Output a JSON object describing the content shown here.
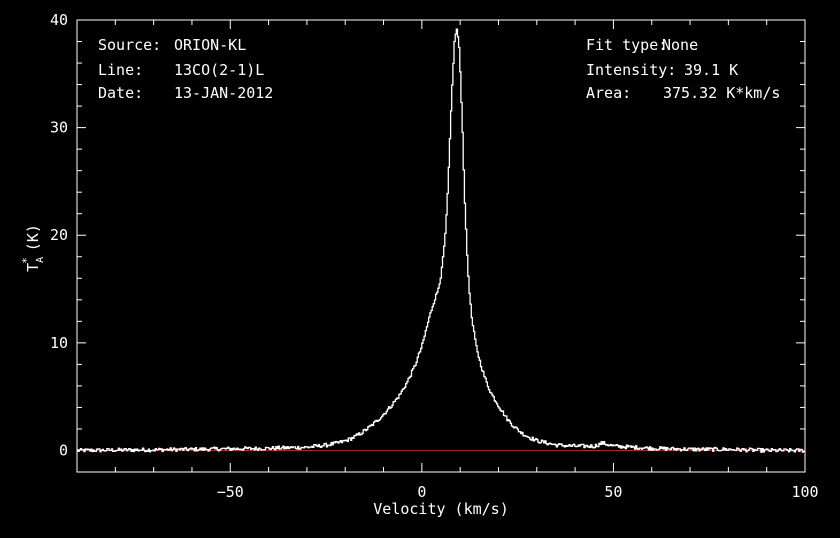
{
  "colors": {
    "background": "#000000",
    "foreground": "#ffffff",
    "spectrum": "#ffffff",
    "baseline": "#ff0000"
  },
  "info_left": {
    "source_label": "Source:",
    "source_value": "ORION-KL",
    "line_label": "Line:",
    "line_value": "13CO(2-1)L",
    "date_label": "Date:",
    "date_value": "13-JAN-2012"
  },
  "info_right": {
    "fit_label": "Fit type:",
    "fit_value": "None",
    "intensity_label": "Intensity:",
    "intensity_value": "39.1 K",
    "area_label": "Area:",
    "area_value": "375.32 K*km/s"
  },
  "chart_data": {
    "type": "line",
    "xlabel": "Velocity (km/s)",
    "ylabel_main": "T",
    "ylabel_sub": "A",
    "ylabel_sup": "*",
    "ylabel_unit": "(K)",
    "xlim": [
      -90,
      100
    ],
    "ylim": [
      -2,
      40
    ],
    "x_ticks": [
      -50,
      0,
      50,
      100
    ],
    "y_ticks": [
      0,
      10,
      20,
      30,
      40
    ],
    "x_tick_labels": [
      "−50",
      "0",
      "50",
      "100"
    ],
    "y_tick_labels": [
      "0",
      "10",
      "20",
      "30",
      "40"
    ],
    "baseline_y": 0,
    "grid": false,
    "series": [
      {
        "x": [
          -90,
          -60,
          -40,
          -30,
          -25,
          -22,
          -20,
          -18,
          -16,
          -14,
          -12,
          -10,
          -8,
          -6,
          -4,
          -2,
          0,
          1,
          2,
          3,
          4,
          5,
          6,
          6.5,
          7,
          7.5,
          8,
          8.5,
          9,
          9.5,
          10,
          10.5,
          11,
          11.5,
          12,
          12.5,
          13,
          14,
          15,
          16,
          17,
          18,
          20,
          22,
          24,
          26,
          28,
          30,
          35,
          40,
          45,
          47,
          50,
          55,
          60,
          70,
          80,
          90,
          100
        ],
        "y": [
          0.0,
          0.1,
          0.2,
          0.3,
          0.5,
          0.7,
          0.9,
          1.2,
          1.6,
          2.1,
          2.7,
          3.4,
          4.2,
          5.1,
          6.3,
          7.8,
          9.8,
          11.2,
          12.6,
          13.8,
          14.8,
          16.5,
          20.0,
          23.0,
          27.0,
          31.5,
          35.5,
          38.5,
          39.1,
          38.0,
          34.5,
          29.5,
          24.0,
          19.5,
          16.2,
          13.8,
          12.0,
          9.8,
          8.3,
          7.1,
          6.1,
          5.3,
          4.1,
          3.0,
          2.2,
          1.6,
          1.2,
          0.9,
          0.5,
          0.4,
          0.4,
          0.7,
          0.4,
          0.3,
          0.2,
          0.1,
          0.1,
          0.0,
          0.0
        ]
      }
    ]
  }
}
